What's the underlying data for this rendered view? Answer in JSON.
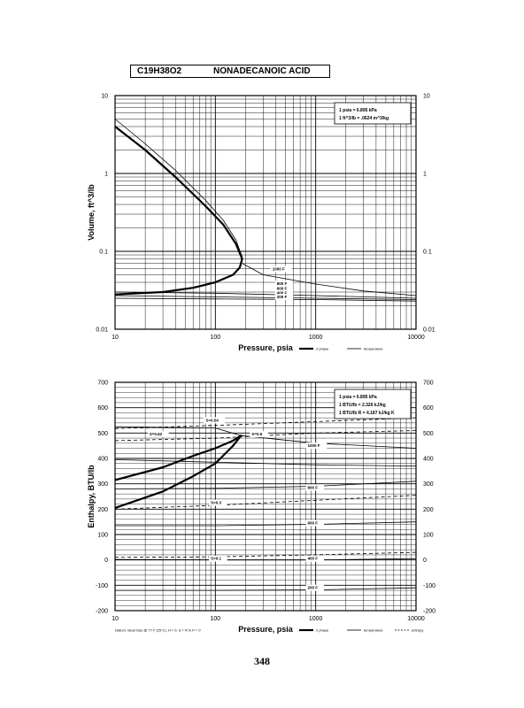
{
  "header": {
    "formula": "C19H38O2",
    "compound": "NONADECANOIC ACID"
  },
  "page_number": "348",
  "chart_data": [
    {
      "type": "line",
      "xscale": "log",
      "yscale": "log",
      "xlim": [
        10,
        10000
      ],
      "ylim": [
        0.01,
        10
      ],
      "xticks": [
        10,
        100,
        1000,
        10000
      ],
      "xtick_labels": [
        "10",
        "100",
        "1000",
        "10000"
      ],
      "yticks": [
        0.01,
        0.1,
        1,
        10
      ],
      "ytick_labels": [
        "0.01",
        "0.1",
        "1",
        "10"
      ],
      "xlabel": "Pressure,  psia",
      "ylabel": "Volume, ft^3/lb",
      "grid": true,
      "conversion_notes": [
        "1 psia = 6.895 kPa",
        "1 ft^3/lb = .0624 m^3/kg"
      ],
      "legend": {
        "placement": "bottom-right",
        "entries": [
          "2 phase",
          "temperature"
        ]
      },
      "series": [
        {
          "name": "2 phase",
          "style": "bold",
          "x": [
            10,
            20,
            40,
            80,
            120,
            160,
            185,
            175,
            150,
            100,
            60,
            30,
            10
          ],
          "y": [
            4.0,
            2.0,
            0.9,
            0.38,
            0.22,
            0.125,
            0.08,
            0.062,
            0.05,
            0.04,
            0.034,
            0.03,
            0.028
          ]
        },
        {
          "style": "thin",
          "x": [
            10,
            20,
            40,
            80,
            120,
            160,
            185
          ],
          "y": [
            5.0,
            2.4,
            1.1,
            0.45,
            0.25,
            0.14,
            0.085
          ]
        },
        {
          "style": "thin",
          "x": [
            185,
            300,
            1000,
            3000,
            10000
          ],
          "y": [
            0.07,
            0.05,
            0.038,
            0.031,
            0.027
          ]
        },
        {
          "style": "thin",
          "x": [
            10,
            100,
            1000,
            10000
          ],
          "y": [
            0.03,
            0.029,
            0.027,
            0.025
          ]
        },
        {
          "style": "thin",
          "x": [
            10,
            100,
            1000,
            10000
          ],
          "y": [
            0.027,
            0.026,
            0.025,
            0.024
          ]
        },
        {
          "style": "thin",
          "x": [
            10,
            100,
            1000,
            10000
          ],
          "y": [
            0.025,
            0.0245,
            0.024,
            0.023
          ]
        }
      ],
      "annotations": [
        {
          "text": "1000 F",
          "x": 370,
          "y": 0.057
        },
        {
          "text": "800 F",
          "x": 410,
          "y": 0.037
        },
        {
          "text": "600 F",
          "x": 410,
          "y": 0.032
        },
        {
          "text": "400 F",
          "x": 410,
          "y": 0.028
        },
        {
          "text": "200 F",
          "x": 410,
          "y": 0.025
        }
      ]
    },
    {
      "type": "line",
      "xscale": "log",
      "yscale": "linear",
      "xlim": [
        10,
        10000
      ],
      "ylim": [
        -200,
        700
      ],
      "xticks": [
        10,
        100,
        1000,
        10000
      ],
      "xtick_labels": [
        "10",
        "100",
        "1000",
        "10000"
      ],
      "yticks": [
        -200,
        -100,
        0,
        100,
        200,
        300,
        400,
        500,
        600,
        700
      ],
      "ytick_labels": [
        "-200",
        "-100",
        "0",
        "100",
        "200",
        "300",
        "400",
        "500",
        "600",
        "700"
      ],
      "xlabel": "Pressure,  psia",
      "ylabel": "Enthalpy, BTU/lb",
      "grid": true,
      "conversion_notes": [
        "1 psia = 6.895 kPa",
        "1 BTU/lb = 2.326 kJ/kg",
        "1 BTU/lb R = 4.187 kJ/kg K"
      ],
      "footnote": "Datum: Ideal Gas @ 77 F (25 C),  H = 0,  S = R ln P = 0",
      "legend": {
        "placement": "bottom-right",
        "entries": [
          "2 phase",
          "temperature",
          "entropy"
        ]
      },
      "series": [
        {
          "name": "2 phase",
          "style": "bold",
          "x": [
            10,
            30,
            60,
            100,
            150,
            180,
            150,
            100,
            60,
            30,
            10
          ],
          "y": [
            315,
            365,
            410,
            440,
            470,
            490,
            450,
            380,
            330,
            270,
            205
          ]
        },
        {
          "style": "thin",
          "x": [
            10,
            100,
            180,
            1000,
            10000
          ],
          "y": [
            525,
            520,
            490,
            460,
            440
          ]
        },
        {
          "style": "thin",
          "x": [
            10,
            100,
            1000,
            10000
          ],
          "y": [
            395,
            385,
            375,
            370
          ]
        },
        {
          "style": "thin",
          "x": [
            10,
            100,
            1000,
            10000
          ],
          "y": [
            280,
            282,
            290,
            310
          ]
        },
        {
          "style": "thin",
          "x": [
            10,
            100,
            1000,
            10000
          ],
          "y": [
            135,
            135,
            140,
            150
          ]
        },
        {
          "style": "thin",
          "x": [
            10,
            100,
            1000,
            10000
          ],
          "y": [
            2,
            0,
            0,
            5
          ]
        },
        {
          "style": "thin",
          "x": [
            10,
            100,
            1000,
            10000
          ],
          "y": [
            -120,
            -120,
            -118,
            -110
          ]
        },
        {
          "style": "dashed",
          "x": [
            10,
            100,
            1000,
            10000
          ],
          "y": [
            470,
            480,
            500,
            510
          ]
        },
        {
          "style": "dashed",
          "x": [
            10,
            100,
            1000,
            10000
          ],
          "y": [
            518,
            530,
            545,
            560
          ]
        },
        {
          "style": "dashed",
          "x": [
            10,
            100,
            1000,
            10000
          ],
          "y": [
            200,
            215,
            235,
            255
          ]
        },
        {
          "style": "dashed",
          "x": [
            10,
            100,
            1000,
            10000
          ],
          "y": [
            10,
            12,
            20,
            30
          ]
        }
      ],
      "annotations": [
        {
          "text": "S=0.54",
          "x": 80,
          "y": 545
        },
        {
          "text": "S=0.62",
          "x": 22,
          "y": 490
        },
        {
          "text": "S=0.5",
          "x": 230,
          "y": 490
        },
        {
          "text": "S=0.3",
          "x": 90,
          "y": 220
        },
        {
          "text": "S=0.1",
          "x": 90,
          "y": 0
        },
        {
          "text": "1000 F",
          "x": 830,
          "y": 445
        },
        {
          "text": "800 F",
          "x": 830,
          "y": 280
        },
        {
          "text": "600 F",
          "x": 830,
          "y": 140
        },
        {
          "text": "400 F",
          "x": 830,
          "y": 0
        },
        {
          "text": "200 F",
          "x": 830,
          "y": -115
        }
      ]
    }
  ]
}
